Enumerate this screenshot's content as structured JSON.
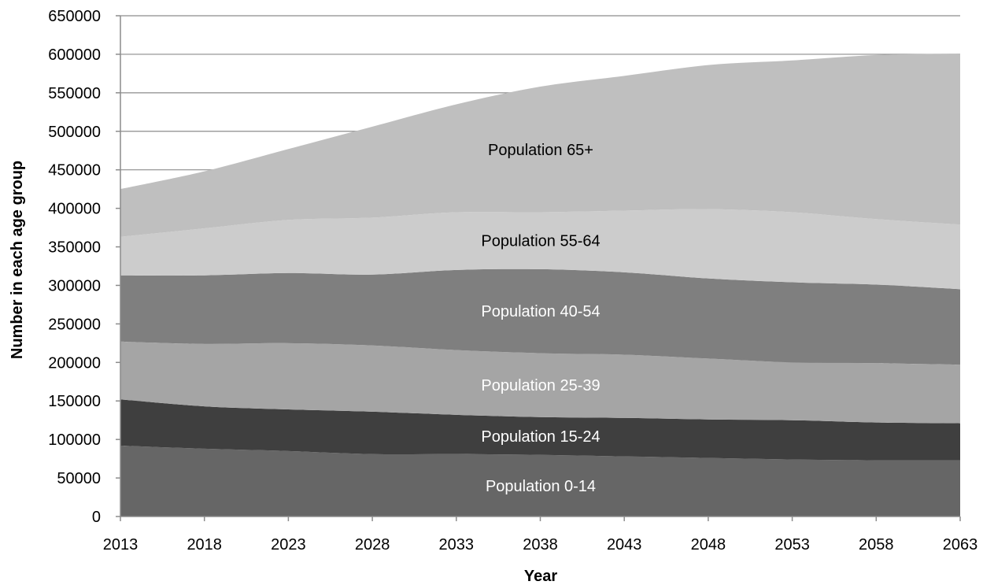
{
  "colors": {
    "gridline": "#8c8c8c",
    "axis": "#8c8c8c",
    "band_label_light": "#ffffff",
    "band_label_dark": "#000000"
  },
  "chart_data": {
    "type": "area",
    "stacked": true,
    "xlabel": "Year",
    "ylabel": "Number in each age group",
    "x": [
      2013,
      2018,
      2023,
      2028,
      2033,
      2038,
      2043,
      2048,
      2053,
      2058,
      2063
    ],
    "x_tick_labels": [
      "2013",
      "2018",
      "2023",
      "2028",
      "2033",
      "2038",
      "2043",
      "2048",
      "2053",
      "2058",
      "2063"
    ],
    "ylim": [
      0,
      650000
    ],
    "y_tick_labels": [
      "0",
      "50000",
      "100000",
      "150000",
      "200000",
      "250000",
      "300000",
      "350000",
      "400000",
      "450000",
      "500000",
      "550000",
      "600000",
      "650000"
    ],
    "y_tick_values": [
      0,
      50000,
      100000,
      150000,
      200000,
      250000,
      300000,
      350000,
      400000,
      450000,
      500000,
      550000,
      600000,
      650000
    ],
    "grid": true,
    "legend": "none (labels printed inside areas)",
    "series": [
      {
        "name": "Population 0-14",
        "color": "#666666",
        "label_color": "#ffffff",
        "values": [
          92000,
          88000,
          85000,
          81000,
          81000,
          80000,
          78000,
          76000,
          74000,
          73000,
          73000
        ]
      },
      {
        "name": "Population 15-24",
        "color": "#3f3f3f",
        "label_color": "#ffffff",
        "values": [
          60000,
          55000,
          54000,
          55000,
          51000,
          49000,
          50000,
          50000,
          51000,
          49000,
          48000
        ]
      },
      {
        "name": "Population 25-39",
        "color": "#a5a5a5",
        "label_color": "#ffffff",
        "values": [
          75000,
          81000,
          86000,
          86000,
          84000,
          83000,
          82000,
          79000,
          75000,
          77000,
          76000
        ]
      },
      {
        "name": "Population 40-54",
        "color": "#7f7f7f",
        "label_color": "#ffffff",
        "values": [
          86000,
          89000,
          91000,
          92000,
          104000,
          109000,
          107000,
          104000,
          104000,
          102000,
          98000
        ]
      },
      {
        "name": "Population 55-64",
        "color": "#cccccc",
        "label_color": "#000000",
        "values": [
          50000,
          61000,
          69000,
          74000,
          75000,
          74000,
          80000,
          90000,
          91000,
          85000,
          84000
        ]
      },
      {
        "name": "Population 65+",
        "color": "#bfbfbf",
        "label_color": "#000000",
        "values": [
          62000,
          74000,
          92000,
          118000,
          140000,
          163000,
          175000,
          187000,
          197000,
          213000,
          222000
        ]
      }
    ]
  }
}
